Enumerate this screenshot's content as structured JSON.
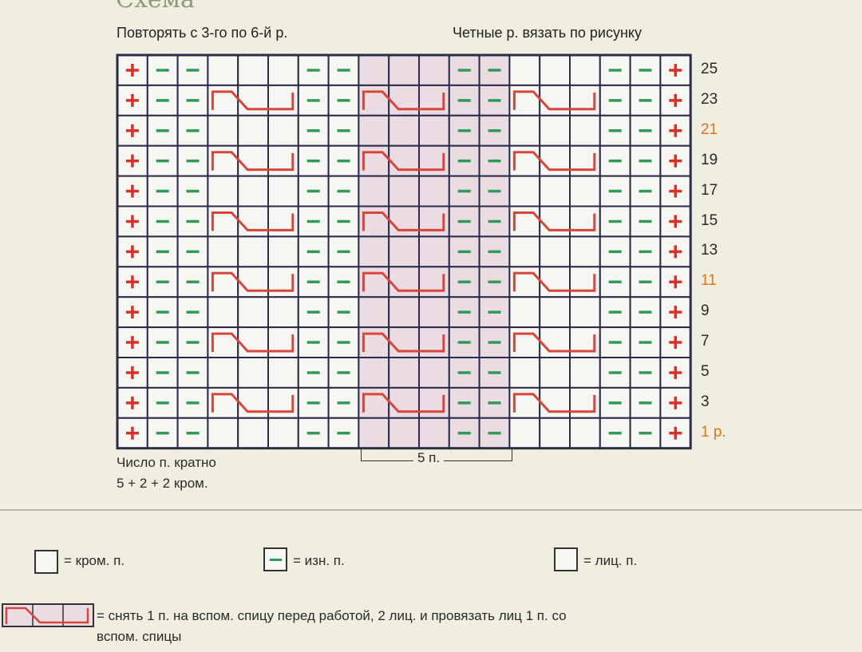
{
  "title": "Схема",
  "header": {
    "left": "Повторять с 3-го по 6-й р.",
    "right": "Четные р. вязать по рисунку"
  },
  "chart": {
    "columns": [
      "edge",
      "purl",
      "purl",
      "knit",
      "knit",
      "knit",
      "purl",
      "purl",
      "knit",
      "knit",
      "knit",
      "purl",
      "purl",
      "knit",
      "knit",
      "knit",
      "purl",
      "purl",
      "edge"
    ],
    "repeat_columns": [
      9,
      13
    ],
    "rows": [
      {
        "label": "25",
        "cable": false,
        "highlight": false
      },
      {
        "label": "23",
        "cable": true,
        "highlight": false
      },
      {
        "label": "21",
        "cable": false,
        "highlight": true
      },
      {
        "label": "19",
        "cable": true,
        "highlight": false
      },
      {
        "label": "17",
        "cable": false,
        "highlight": false
      },
      {
        "label": "15",
        "cable": true,
        "highlight": false
      },
      {
        "label": "13",
        "cable": false,
        "highlight": false
      },
      {
        "label": "11",
        "cable": true,
        "highlight": true
      },
      {
        "label": "9",
        "cable": false,
        "highlight": false
      },
      {
        "label": "7",
        "cable": true,
        "highlight": false
      },
      {
        "label": "5",
        "cable": false,
        "highlight": false
      },
      {
        "label": "3",
        "cable": true,
        "highlight": false
      },
      {
        "label": "1 р.",
        "cable": false,
        "highlight": true
      }
    ],
    "repeat_label": "5 п.",
    "colors": {
      "edge": "#d9302a",
      "purl": "#2e9a55",
      "cable": "#d9453a",
      "grid": "#2b2b4a",
      "cell": "#f6f6f2",
      "repeat": "#eadce2",
      "highlight_label": "#d9761f"
    }
  },
  "notes": {
    "line1": "Число п. кратно",
    "line2": "5 + 2 + 2 кром."
  },
  "legend": {
    "edge": "= кром. п.",
    "purl": "= изн. п.",
    "knit": "= лиц. п.",
    "cable_line1": "= снять 1 п. на вспом. спицу перед работой, 2 лиц. и провязать лиц 1 п. со",
    "cable_line2": "вспом. спицы"
  }
}
